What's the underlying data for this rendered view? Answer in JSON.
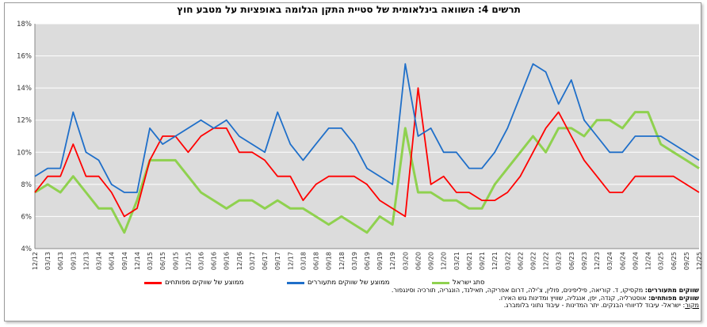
{
  "chart_data": {
    "type": "line",
    "title": "תרשים 4: השוואה בינלאומית של סטיית התקן הגלומה באופציות על מטבע חוץ",
    "ylim": [
      4,
      18
    ],
    "yticks": [
      "4%",
      "6%",
      "8%",
      "10%",
      "12%",
      "14%",
      "16%",
      "18%"
    ],
    "grid": true,
    "legend_position": "bottom",
    "x": [
      "12/12",
      "03/13",
      "06/13",
      "09/13",
      "12/13",
      "03/14",
      "06/14",
      "09/14",
      "12/14",
      "03/15",
      "06/15",
      "09/15",
      "12/15",
      "03/16",
      "06/16",
      "09/16",
      "12/16",
      "03/17",
      "06/17",
      "09/17",
      "12/17",
      "03/18",
      "06/18",
      "09/18",
      "12/18",
      "03/19",
      "06/19",
      "09/19",
      "12/19",
      "03/20",
      "06/20",
      "09/20",
      "12/20",
      "03/21",
      "06/21",
      "09/21",
      "12/21",
      "03/22",
      "06/22",
      "09/22",
      "12/22",
      "03/23",
      "06/23",
      "09/23",
      "12/23",
      "03/24",
      "06/24",
      "09/24",
      "12/24",
      "03/25",
      "06/25",
      "09/25",
      "12/25"
    ],
    "series": [
      {
        "name": "ממוצע של שווקים מפותחים",
        "color": "#ff0000",
        "values": [
          7.5,
          8.5,
          8.5,
          10.5,
          8.5,
          8.5,
          7.5,
          6.0,
          6.5,
          9.5,
          11.0,
          11.0,
          10.0,
          11.0,
          11.5,
          11.5,
          10.0,
          10.0,
          9.5,
          8.5,
          8.5,
          7.0,
          8.0,
          8.5,
          8.5,
          8.5,
          8.0,
          7.0,
          6.5,
          6.0,
          14.0,
          8.0,
          8.5,
          7.5,
          7.5,
          7.0,
          7.0,
          7.5,
          8.5,
          10.0,
          11.5,
          12.5,
          11.0,
          9.5,
          8.5,
          7.5,
          7.5,
          8.5,
          8.5,
          8.5,
          8.5,
          8.0,
          7.5
        ]
      },
      {
        "name": "ממוצע של שווקים מתעוררים",
        "color": "#1f6fc9",
        "values": [
          8.5,
          9.0,
          9.0,
          12.5,
          10.0,
          9.5,
          8.0,
          7.5,
          7.5,
          11.5,
          10.5,
          11.0,
          11.5,
          12.0,
          11.5,
          12.0,
          11.0,
          10.5,
          10.0,
          12.5,
          10.5,
          9.5,
          10.5,
          11.5,
          11.5,
          10.5,
          9.0,
          8.5,
          8.0,
          15.5,
          11.0,
          11.5,
          10.0,
          10.0,
          9.0,
          9.0,
          10.0,
          11.5,
          13.5,
          15.5,
          15.0,
          13.0,
          14.5,
          12.0,
          11.0,
          10.0,
          10.0,
          11.0,
          11.0,
          11.0,
          10.5,
          10.0,
          9.5
        ]
      },
      {
        "name": "סתג ישראל",
        "color": "#8fd14f",
        "values": [
          7.5,
          8.0,
          7.5,
          8.5,
          7.5,
          6.5,
          6.5,
          5.0,
          7.0,
          9.5,
          9.5,
          9.5,
          8.5,
          7.5,
          7.0,
          6.5,
          7.0,
          7.0,
          6.5,
          7.0,
          6.5,
          6.5,
          6.0,
          5.5,
          6.0,
          5.5,
          5.0,
          6.0,
          5.5,
          11.5,
          7.5,
          7.5,
          7.0,
          7.0,
          6.5,
          6.5,
          8.0,
          9.0,
          10.0,
          11.0,
          10.0,
          11.5,
          11.5,
          11.0,
          12.0,
          12.0,
          11.5,
          12.5,
          12.5,
          10.5,
          10.0,
          9.5,
          9.0
        ]
      }
    ]
  },
  "notes": {
    "emerging_label": "שווקים מתעוררים:",
    "emerging_text": " מקסיקו, ד. קוריאה, פיליפינים, פולין, צ'ילה, דרום אפריקה, תאילנד, הונגריה, תורכיה וסינגפור.",
    "developed_label": "שווקים מפותחים:",
    "developed_text": " אוסטרליה, קנדה, יפן, אנגליה, שוויץ ומדינות גוש האירו.",
    "source_label": "מקור",
    "source_text": ": ישראל- עיבוד לדיווחי הבנקים. יתר המדינות - עיבוד נתוני בלומברג."
  }
}
